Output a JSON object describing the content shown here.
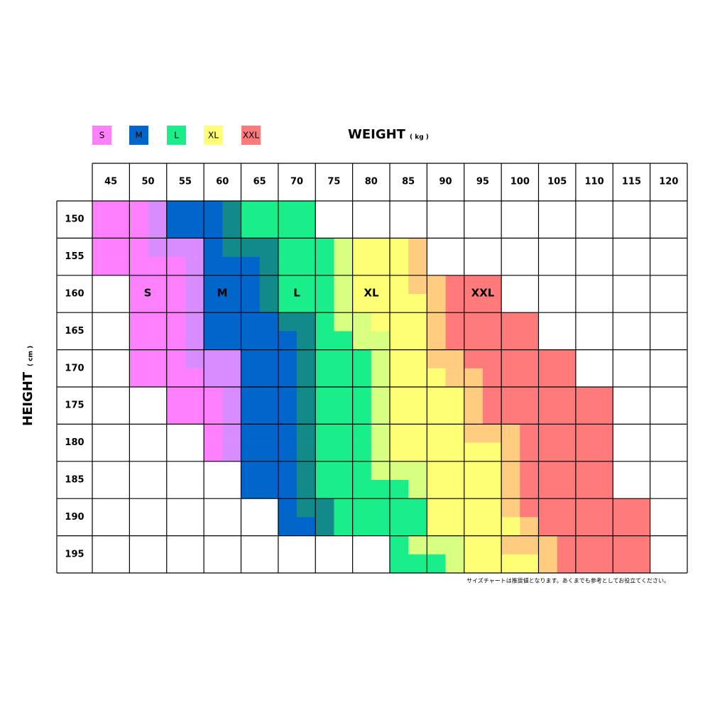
{
  "legend": [
    "S",
    "M",
    "L",
    "XL",
    "XXL"
  ],
  "weight_label": "WEIGHT",
  "weight_unit": "( kg )",
  "height_label": "HEIGHT",
  "height_unit": "( cm )",
  "weights": [
    45,
    50,
    55,
    60,
    65,
    70,
    75,
    80,
    85,
    90,
    95,
    100,
    105,
    110,
    115,
    120
  ],
  "heights": [
    150,
    155,
    160,
    165,
    170,
    175,
    180,
    185,
    190,
    195
  ],
  "region_labels": [
    "S",
    "M",
    "L",
    "XL",
    "XXL"
  ],
  "note": "サイズチャートは推奨値となります。あくまでも参考としてお役立てください。"
}
